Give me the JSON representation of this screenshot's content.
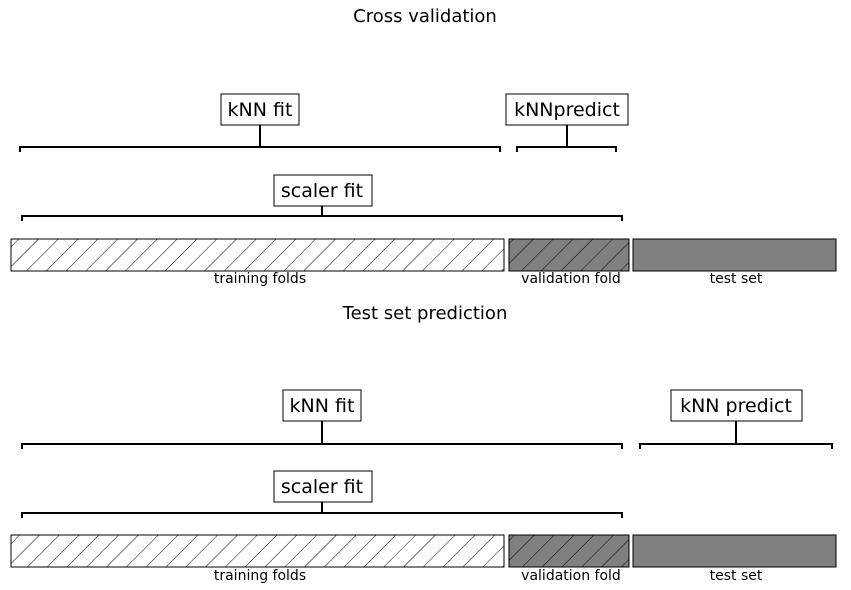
{
  "panels": [
    {
      "title": "Cross validation",
      "brackets": {
        "knn_fit": "kNN fit",
        "knn_predict": "kNNpredict",
        "scaler_fit": "scaler fit"
      },
      "segments": {
        "training": "training folds",
        "validation": "validation fold",
        "test": "test set"
      }
    },
    {
      "title": "Test set prediction",
      "brackets": {
        "knn_fit": "kNN fit",
        "knn_predict": "kNN predict",
        "scaler_fit": "scaler fit"
      },
      "segments": {
        "training": "training folds",
        "validation": "validation fold",
        "test": "test set"
      }
    }
  ],
  "colors": {
    "training_fill": "#ffffff",
    "validation_fill": "#808080",
    "test_fill": "#808080",
    "line": "#000000"
  }
}
